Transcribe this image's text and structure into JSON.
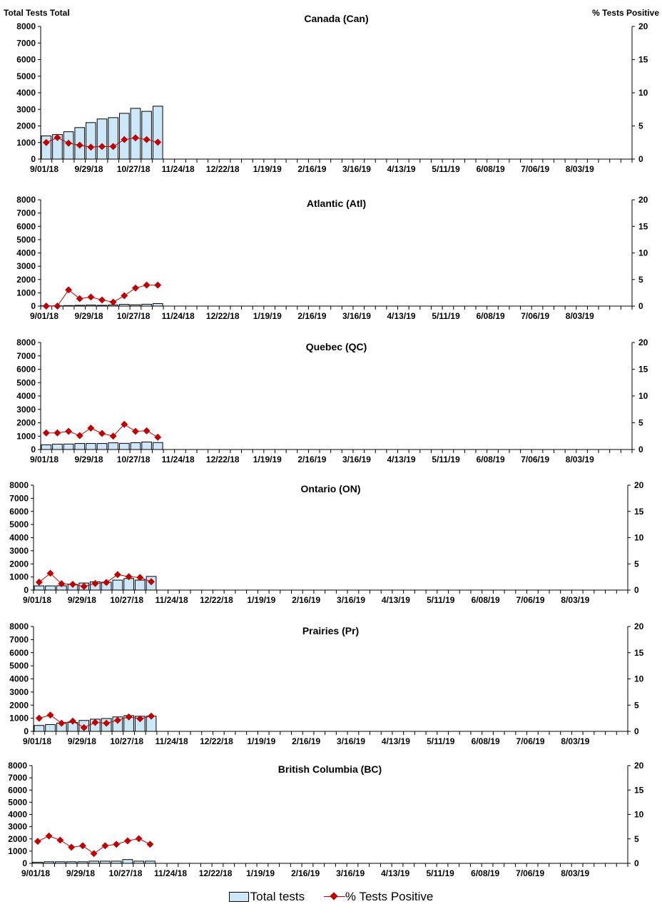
{
  "header": {
    "left_axis_title": "Total Tests Total",
    "right_axis_title": "% Tests Positive"
  },
  "legend": {
    "bars": "Total tests",
    "line": "% Tests Positive"
  },
  "colors": {
    "bar_fill": "#cce8f8",
    "bar_stroke": "#000000",
    "line": "#c00000"
  },
  "chart_data": [
    {
      "type": "bar+line",
      "title": "Canada (Can)",
      "ylim": [
        0,
        8000
      ],
      "y2lim": [
        0,
        20
      ],
      "x_tick_labels": [
        "9/01/18",
        "9/29/18",
        "10/27/18",
        "11/24/18",
        "12/22/18",
        "1/19/19",
        "2/16/19",
        "3/16/19",
        "4/13/19",
        "5/11/19",
        "6/08/19",
        "7/06/19",
        "8/03/19"
      ],
      "total_tests": [
        1400,
        1480,
        1650,
        1900,
        2200,
        2420,
        2500,
        2760,
        3060,
        2880,
        3190
      ],
      "pct_positive": [
        2.5,
        3.25,
        2.4,
        2.1,
        1.8,
        1.9,
        1.9,
        2.95,
        3.2,
        2.95,
        2.55
      ]
    },
    {
      "type": "bar+line",
      "title": "Atlantic (Atl)",
      "ylim": [
        0,
        8000
      ],
      "y2lim": [
        0,
        20
      ],
      "x_tick_labels": [
        "9/01/18",
        "9/29/18",
        "10/27/18",
        "11/24/18",
        "12/22/18",
        "1/19/19",
        "2/16/19",
        "3/16/19",
        "4/13/19",
        "5/11/19",
        "6/08/19",
        "7/06/19",
        "8/03/19"
      ],
      "total_tests": [
        20,
        20,
        40,
        60,
        80,
        60,
        90,
        130,
        100,
        140,
        190
      ],
      "pct_positive": [
        0,
        0,
        3.05,
        1.4,
        1.7,
        1.15,
        0.75,
        1.95,
        3.4,
        3.95,
        3.95
      ]
    },
    {
      "type": "bar+line",
      "title": "Quebec (QC)",
      "ylim": [
        0,
        8000
      ],
      "y2lim": [
        0,
        20
      ],
      "x_tick_labels": [
        "9/01/18",
        "9/29/18",
        "10/27/18",
        "11/24/18",
        "12/22/18",
        "1/19/19",
        "2/16/19",
        "3/16/19",
        "4/13/19",
        "5/11/19",
        "6/08/19",
        "7/06/19",
        "8/03/19"
      ],
      "total_tests": [
        350,
        400,
        410,
        450,
        450,
        450,
        500,
        460,
        510,
        560,
        520
      ],
      "pct_positive": [
        3.1,
        3.1,
        3.4,
        2.6,
        4.0,
        3.0,
        2.5,
        4.7,
        3.4,
        3.5,
        2.3
      ]
    },
    {
      "type": "bar+line",
      "title": "Ontario (ON)",
      "ylim": [
        0,
        8000
      ],
      "y2lim": [
        0,
        20
      ],
      "x_tick_labels": [
        "9/01/18",
        "9/29/18",
        "10/27/18",
        "11/24/18",
        "12/22/18",
        "1/19/19",
        "2/16/19",
        "3/16/19",
        "4/13/19",
        "5/11/19",
        "6/08/19",
        "7/06/19",
        "8/03/19"
      ],
      "total_tests": [
        320,
        320,
        330,
        430,
        540,
        630,
        600,
        760,
        880,
        760,
        1040
      ],
      "pct_positive": [
        1.5,
        3.2,
        1.2,
        1.1,
        0.7,
        1.25,
        1.45,
        2.95,
        2.55,
        2.4,
        1.6
      ]
    },
    {
      "type": "bar+line",
      "title": "Prairies (Pr)",
      "ylim": [
        0,
        8000
      ],
      "y2lim": [
        0,
        20
      ],
      "x_tick_labels": [
        "9/01/18",
        "9/29/18",
        "10/27/18",
        "11/24/18",
        "12/22/18",
        "1/19/19",
        "2/16/19",
        "3/16/19",
        "4/13/19",
        "5/11/19",
        "6/08/19",
        "7/06/19",
        "8/03/19"
      ],
      "total_tests": [
        450,
        520,
        620,
        680,
        830,
        930,
        980,
        1100,
        1200,
        1150,
        1160
      ],
      "pct_positive": [
        2.5,
        3.1,
        1.55,
        1.95,
        0.7,
        1.7,
        1.55,
        2.1,
        2.75,
        2.4,
        2.9
      ]
    },
    {
      "type": "bar+line",
      "title": "British Columbia (BC)",
      "ylim": [
        0,
        8000
      ],
      "y2lim": [
        0,
        20
      ],
      "x_tick_labels": [
        "9/01/18",
        "9/29/18",
        "10/27/18",
        "11/24/18",
        "12/22/18",
        "1/19/19",
        "2/16/19",
        "3/16/19",
        "4/13/19",
        "5/11/19",
        "6/08/19",
        "7/06/19",
        "8/03/19"
      ],
      "total_tests": [
        90,
        130,
        130,
        130,
        130,
        180,
        180,
        180,
        310,
        180,
        180
      ],
      "pct_positive": [
        4.5,
        5.6,
        4.75,
        3.3,
        3.6,
        2.0,
        3.6,
        3.9,
        4.6,
        5.05,
        3.9
      ]
    }
  ]
}
